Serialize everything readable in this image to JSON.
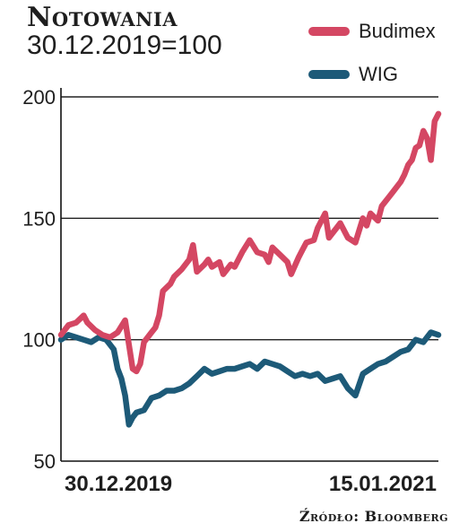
{
  "header": {
    "title": "Notowania",
    "subtitle": "30.12.2019=100"
  },
  "source": "Źródło: Bloomberg",
  "colors": {
    "budimex": "#d44763",
    "wig": "#1d5a78",
    "grid": "#222222",
    "axis": "#111111"
  },
  "chart_data": {
    "type": "line",
    "title": "Notowania",
    "subtitle": "30.12.2019=100",
    "ylim": [
      50,
      200
    ],
    "yticks": [
      50,
      100,
      150,
      200
    ],
    "xlim": [
      0,
      1
    ],
    "x_tick_labels": [
      {
        "x": 0,
        "label": "30.12.2019"
      },
      {
        "x": 1,
        "label": "15.01.2021"
      }
    ],
    "grid": true,
    "legend": "top-right",
    "series": [
      {
        "name": "Budimex",
        "color": "#d44763",
        "x": [
          0,
          0.02,
          0.04,
          0.06,
          0.07,
          0.09,
          0.11,
          0.13,
          0.15,
          0.17,
          0.18,
          0.19,
          0.2,
          0.21,
          0.22,
          0.24,
          0.25,
          0.26,
          0.27,
          0.29,
          0.3,
          0.32,
          0.34,
          0.35,
          0.36,
          0.38,
          0.39,
          0.4,
          0.42,
          0.43,
          0.45,
          0.46,
          0.48,
          0.5,
          0.52,
          0.54,
          0.55,
          0.56,
          0.58,
          0.6,
          0.61,
          0.63,
          0.64,
          0.65,
          0.67,
          0.68,
          0.7,
          0.71,
          0.73,
          0.74,
          0.76,
          0.78,
          0.8,
          0.81,
          0.82,
          0.84,
          0.85,
          0.87,
          0.88,
          0.9,
          0.91,
          0.92,
          0.93,
          0.94,
          0.95,
          0.96,
          0.97,
          0.98,
          0.99,
          1.0
        ],
        "y": [
          102,
          106,
          107,
          110,
          107,
          104,
          102,
          101,
          103,
          108,
          98,
          88,
          87,
          90,
          99,
          103,
          105,
          110,
          120,
          123,
          126,
          129,
          133,
          139,
          128,
          131,
          133,
          130,
          132,
          127,
          131,
          130,
          136,
          141,
          136,
          135,
          132,
          138,
          135,
          132,
          127,
          134,
          137,
          140,
          141,
          146,
          152,
          142,
          146,
          148,
          142,
          140,
          150,
          147,
          152,
          149,
          155,
          159,
          161,
          165,
          168,
          172,
          174,
          179,
          180,
          186,
          183,
          174,
          190,
          193
        ]
      },
      {
        "name": "WIG",
        "color": "#1d5a78",
        "x": [
          0,
          0.02,
          0.04,
          0.06,
          0.08,
          0.1,
          0.12,
          0.14,
          0.15,
          0.16,
          0.17,
          0.18,
          0.19,
          0.2,
          0.22,
          0.24,
          0.26,
          0.28,
          0.3,
          0.32,
          0.34,
          0.36,
          0.38,
          0.4,
          0.42,
          0.44,
          0.46,
          0.48,
          0.5,
          0.52,
          0.54,
          0.56,
          0.58,
          0.6,
          0.62,
          0.64,
          0.66,
          0.68,
          0.7,
          0.72,
          0.74,
          0.76,
          0.78,
          0.8,
          0.82,
          0.84,
          0.86,
          0.88,
          0.9,
          0.92,
          0.94,
          0.96,
          0.98,
          1.0
        ],
        "y": [
          100,
          102,
          101,
          100,
          99,
          101,
          100,
          96,
          88,
          84,
          77,
          65,
          68,
          70,
          71,
          76,
          77,
          79,
          79,
          80,
          82,
          85,
          88,
          86,
          87,
          88,
          88,
          89,
          90,
          88,
          91,
          90,
          89,
          87,
          85,
          86,
          85,
          86,
          83,
          84,
          85,
          80,
          77,
          86,
          88,
          90,
          91,
          93,
          95,
          96,
          100,
          99,
          103,
          102
        ]
      }
    ]
  }
}
